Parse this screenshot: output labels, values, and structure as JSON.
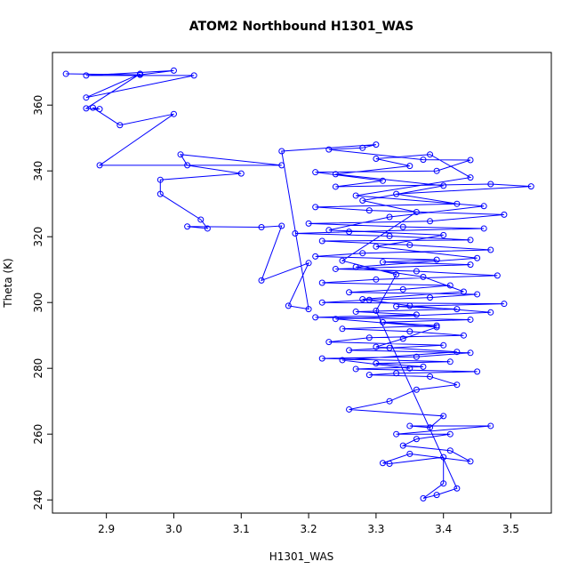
{
  "chart_data": {
    "type": "scatter",
    "title": "ATOM2 Northbound H1301_WAS",
    "xlabel": "H1301_WAS",
    "ylabel": "Theta (K)",
    "xlim": [
      2.82,
      3.56
    ],
    "ylim": [
      236,
      376
    ],
    "x_ticks": [
      "2.9",
      "3.0",
      "3.1",
      "3.2",
      "3.3",
      "3.4",
      "3.5"
    ],
    "y_ticks": [
      "240",
      "260",
      "280",
      "300",
      "320",
      "340",
      "360"
    ],
    "grid": false,
    "legend": "none",
    "series": [
      {
        "color": "#0000ff",
        "marker": "open-circle",
        "connected": true,
        "points": [
          [
            2.84,
            369.5
          ],
          [
            2.95,
            369.2
          ],
          [
            3.0,
            370.5
          ],
          [
            2.87,
            369.0
          ],
          [
            3.03,
            369.0
          ],
          [
            2.87,
            362.3
          ],
          [
            2.95,
            369.5
          ],
          [
            2.87,
            359.0
          ],
          [
            2.89,
            358.8
          ],
          [
            2.88,
            359.2
          ],
          [
            2.92,
            353.9
          ],
          [
            3.0,
            357.3
          ],
          [
            2.89,
            341.7
          ],
          [
            3.16,
            341.7
          ],
          [
            3.01,
            345.0
          ],
          [
            3.02,
            341.7
          ],
          [
            3.1,
            339.2
          ],
          [
            2.98,
            337.3
          ],
          [
            2.98,
            333.0
          ],
          [
            3.04,
            325.2
          ],
          [
            3.05,
            322.5
          ],
          [
            3.02,
            323.1
          ],
          [
            3.13,
            322.9
          ],
          [
            3.16,
            323.3
          ],
          [
            3.13,
            306.7
          ],
          [
            3.2,
            312.0
          ],
          [
            3.17,
            299.0
          ],
          [
            3.2,
            298.0
          ],
          [
            3.16,
            346.0
          ],
          [
            3.3,
            348.0
          ],
          [
            3.28,
            347.0
          ],
          [
            3.23,
            346.5
          ],
          [
            3.37,
            343.4
          ],
          [
            3.44,
            343.3
          ],
          [
            3.39,
            340.0
          ],
          [
            3.21,
            339.6
          ],
          [
            3.31,
            337.0
          ],
          [
            3.24,
            335.2
          ],
          [
            3.47,
            336.0
          ],
          [
            3.53,
            335.3
          ],
          [
            3.33,
            333.0
          ],
          [
            3.42,
            330.0
          ],
          [
            3.21,
            329.0
          ],
          [
            3.29,
            328.0
          ],
          [
            3.49,
            326.7
          ],
          [
            3.38,
            324.7
          ],
          [
            3.2,
            324.0
          ],
          [
            3.34,
            323.0
          ],
          [
            3.46,
            322.5
          ],
          [
            3.26,
            321.5
          ],
          [
            3.18,
            321.0
          ],
          [
            3.32,
            320.2
          ],
          [
            3.44,
            319.0
          ],
          [
            3.22,
            318.7
          ],
          [
            3.35,
            317.5
          ],
          [
            3.47,
            316.0
          ],
          [
            3.28,
            315.0
          ],
          [
            3.21,
            314.0
          ],
          [
            3.39,
            313.0
          ],
          [
            3.31,
            312.3
          ],
          [
            3.44,
            311.5
          ],
          [
            3.24,
            310.2
          ],
          [
            3.36,
            309.5
          ],
          [
            3.48,
            308.2
          ],
          [
            3.3,
            307.0
          ],
          [
            3.22,
            306.0
          ],
          [
            3.41,
            305.2
          ],
          [
            3.34,
            304.0
          ],
          [
            3.26,
            303.1
          ],
          [
            3.45,
            302.5
          ],
          [
            3.38,
            301.5
          ],
          [
            3.29,
            300.8
          ],
          [
            3.22,
            300.0
          ],
          [
            3.49,
            299.6
          ],
          [
            3.33,
            298.8
          ],
          [
            3.42,
            298.0
          ],
          [
            3.27,
            297.2
          ],
          [
            3.36,
            296.3
          ],
          [
            3.21,
            295.5
          ],
          [
            3.44,
            294.8
          ],
          [
            3.31,
            294.0
          ],
          [
            3.39,
            293.0
          ],
          [
            3.25,
            292.0
          ],
          [
            3.35,
            291.2
          ],
          [
            3.43,
            290.0
          ],
          [
            3.29,
            289.3
          ],
          [
            3.23,
            288.0
          ],
          [
            3.4,
            287.0
          ],
          [
            3.32,
            286.2
          ],
          [
            3.26,
            285.5
          ],
          [
            3.44,
            284.7
          ],
          [
            3.36,
            283.5
          ],
          [
            3.22,
            283.0
          ],
          [
            3.41,
            282.0
          ],
          [
            3.3,
            281.5
          ],
          [
            3.37,
            280.5
          ],
          [
            3.27,
            279.8
          ],
          [
            3.45,
            279.0
          ],
          [
            3.33,
            278.5
          ],
          [
            3.29,
            278.0
          ],
          [
            3.38,
            277.5
          ],
          [
            3.42,
            275.0
          ],
          [
            3.36,
            273.5
          ],
          [
            3.32,
            270.0
          ],
          [
            3.26,
            267.5
          ],
          [
            3.4,
            265.5
          ],
          [
            3.38,
            262.0
          ],
          [
            3.35,
            262.5
          ],
          [
            3.47,
            262.5
          ],
          [
            3.33,
            260.0
          ],
          [
            3.41,
            260.0
          ],
          [
            3.36,
            258.5
          ],
          [
            3.34,
            256.5
          ],
          [
            3.41,
            255.0
          ],
          [
            3.44,
            251.7
          ],
          [
            3.35,
            254.0
          ],
          [
            3.31,
            251.2
          ],
          [
            3.32,
            251.0
          ],
          [
            3.4,
            253.0
          ],
          [
            3.4,
            245.0
          ],
          [
            3.37,
            240.5
          ],
          [
            3.39,
            241.5
          ],
          [
            3.42,
            243.5
          ],
          [
            3.3,
            297.5
          ],
          [
            3.33,
            308.5
          ],
          [
            3.25,
            312.7
          ],
          [
            3.36,
            327.5
          ],
          [
            3.28,
            331.0
          ],
          [
            3.4,
            335.5
          ],
          [
            3.24,
            339.0
          ],
          [
            3.35,
            341.5
          ],
          [
            3.3,
            343.7
          ],
          [
            3.38,
            345.0
          ],
          [
            3.44,
            338.0
          ],
          [
            3.27,
            332.5
          ],
          [
            3.46,
            329.3
          ],
          [
            3.32,
            326.0
          ],
          [
            3.23,
            322.0
          ],
          [
            3.4,
            320.5
          ],
          [
            3.3,
            317.0
          ],
          [
            3.45,
            313.5
          ],
          [
            3.27,
            310.8
          ],
          [
            3.37,
            307.8
          ],
          [
            3.43,
            303.3
          ],
          [
            3.28,
            301.0
          ],
          [
            3.35,
            299.0
          ],
          [
            3.47,
            297.0
          ],
          [
            3.24,
            295.0
          ],
          [
            3.39,
            292.5
          ],
          [
            3.34,
            289.0
          ],
          [
            3.3,
            286.5
          ],
          [
            3.42,
            285.0
          ],
          [
            3.25,
            282.5
          ],
          [
            3.35,
            280.0
          ]
        ]
      }
    ]
  }
}
